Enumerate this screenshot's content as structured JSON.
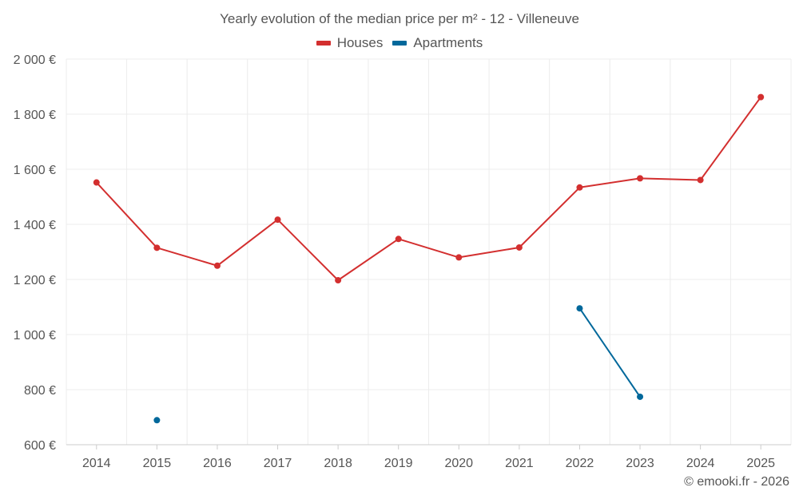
{
  "chart_data": {
    "type": "line",
    "title": "Yearly evolution of the median price per m² - 12 - Villeneuve",
    "categories": [
      "2014",
      "2015",
      "2016",
      "2017",
      "2018",
      "2019",
      "2020",
      "2021",
      "2022",
      "2023",
      "2024",
      "2025"
    ],
    "series": [
      {
        "name": "Houses",
        "color": "#d32f2f",
        "values": [
          1552,
          1315,
          1250,
          1417,
          1197,
          1347,
          1280,
          1316,
          1534,
          1567,
          1561,
          1862
        ]
      },
      {
        "name": "Apartments",
        "color": "#01689b",
        "values": [
          null,
          689,
          null,
          null,
          null,
          null,
          null,
          null,
          1095,
          774,
          null,
          null
        ]
      }
    ],
    "y_ticks": [
      600,
      800,
      1000,
      1200,
      1400,
      1600,
      1800,
      2000
    ],
    "y_tick_labels": [
      "600 €",
      "800 €",
      "1 000 €",
      "1 200 €",
      "1 400 €",
      "1 600 €",
      "1 800 €",
      "2 000 €"
    ],
    "ylim": [
      600,
      2000
    ],
    "xlabel": "",
    "ylabel": "",
    "grid": true,
    "legend_position": "top-center"
  },
  "footer": {
    "copyright": "© emooki.fr - 2026"
  }
}
